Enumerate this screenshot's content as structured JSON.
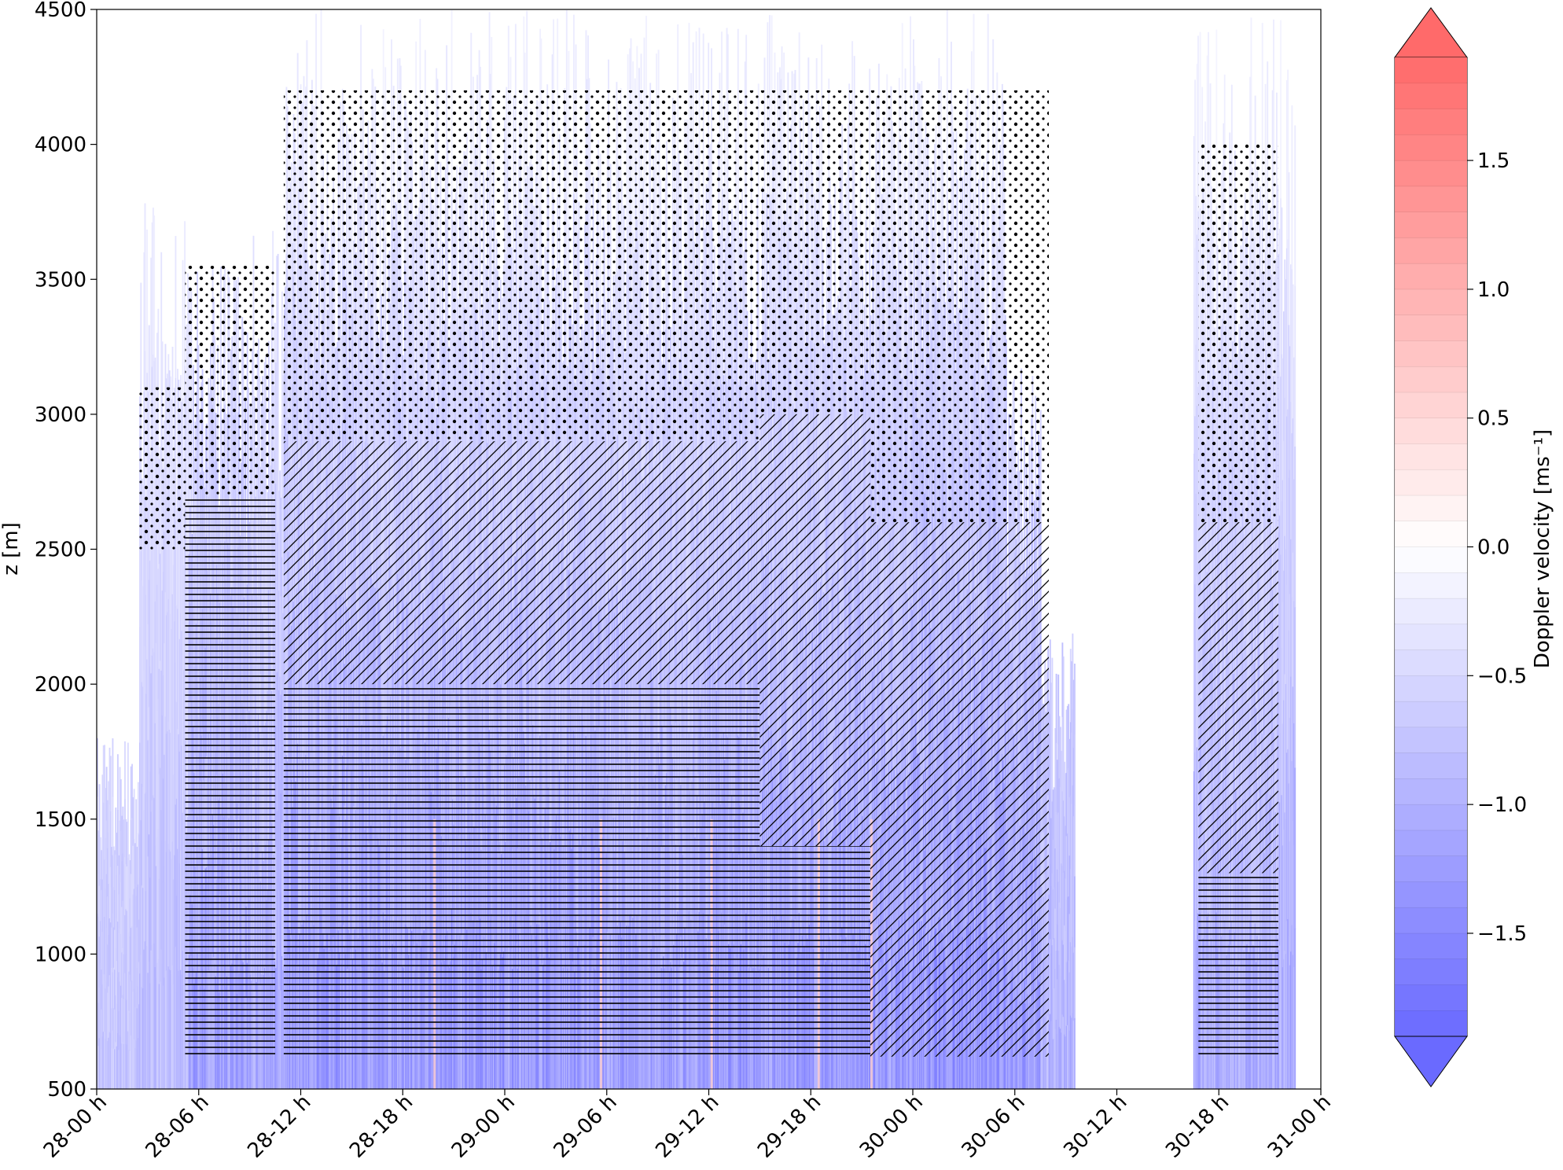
{
  "chart_data": {
    "type": "heatmap",
    "title": "",
    "ylabel": "z [m]",
    "xlabel": "",
    "xlim_hours": [
      0,
      72
    ],
    "ylim": [
      500,
      4500
    ],
    "x_ticks": [
      {
        "hour": 0,
        "label": "28-00 h"
      },
      {
        "hour": 6,
        "label": "28-06 h"
      },
      {
        "hour": 12,
        "label": "28-12 h"
      },
      {
        "hour": 18,
        "label": "28-18 h"
      },
      {
        "hour": 24,
        "label": "29-00 h"
      },
      {
        "hour": 30,
        "label": "29-06 h"
      },
      {
        "hour": 36,
        "label": "29-12 h"
      },
      {
        "hour": 42,
        "label": "29-18 h"
      },
      {
        "hour": 48,
        "label": "30-00 h"
      },
      {
        "hour": 54,
        "label": "30-06 h"
      },
      {
        "hour": 60,
        "label": "30-12 h"
      },
      {
        "hour": 66,
        "label": "30-18 h"
      },
      {
        "hour": 72,
        "label": "31-00 h"
      }
    ],
    "y_ticks": [
      500,
      1000,
      1500,
      2000,
      2500,
      3000,
      3500,
      4000,
      4500
    ],
    "colorbar": {
      "label": "Doppler velocity [ms⁻¹]",
      "min": -1.9,
      "max": 1.9,
      "ticks": [
        {
          "value": 1.5,
          "label": "1.5"
        },
        {
          "value": 1.0,
          "label": "1.0"
        },
        {
          "value": 0.5,
          "label": "0.5"
        },
        {
          "value": 0.0,
          "label": "0.0"
        },
        {
          "value": -0.5,
          "label": "−0.5"
        },
        {
          "value": -1.0,
          "label": "−1.0"
        },
        {
          "value": -1.5,
          "label": "−1.5"
        }
      ],
      "extend": "both",
      "colormap": "bwr",
      "color_low": "#6a6aff",
      "color_mid": "#ffffff",
      "color_high": "#ff6a6a"
    },
    "echo_columns": [
      {
        "start_h": 0.0,
        "end_h": 2.5,
        "top_m": 1800,
        "intensity": 0.45
      },
      {
        "start_h": 2.5,
        "end_h": 5.4,
        "top_m": 3800,
        "intensity": 0.55
      },
      {
        "start_h": 5.4,
        "end_h": 9.0,
        "top_m": 3550,
        "intensity": 0.8
      },
      {
        "start_h": 9.0,
        "end_h": 11.0,
        "top_m": 3700,
        "intensity": 0.7
      },
      {
        "start_h": 11.0,
        "end_h": 24.0,
        "top_m": 4500,
        "intensity": 0.85
      },
      {
        "start_h": 24.0,
        "end_h": 30.0,
        "top_m": 4500,
        "intensity": 0.85
      },
      {
        "start_h": 30.0,
        "end_h": 36.0,
        "top_m": 4500,
        "intensity": 0.8
      },
      {
        "start_h": 36.0,
        "end_h": 42.0,
        "top_m": 4500,
        "intensity": 0.85
      },
      {
        "start_h": 42.0,
        "end_h": 48.0,
        "top_m": 4500,
        "intensity": 0.85
      },
      {
        "start_h": 48.0,
        "end_h": 53.5,
        "top_m": 4500,
        "intensity": 0.9
      },
      {
        "start_h": 53.5,
        "end_h": 55.5,
        "top_m": 3200,
        "intensity": 0.8
      },
      {
        "start_h": 55.5,
        "end_h": 57.5,
        "top_m": 2200,
        "intensity": 0.6
      },
      {
        "start_h": 64.5,
        "end_h": 70.5,
        "top_m": 4500,
        "intensity": 0.7
      }
    ],
    "hatched_regions": [
      {
        "start_h": 2.5,
        "end_h": 5.2,
        "bottom_m": 2500,
        "top_m": 3100,
        "pattern": "dots"
      },
      {
        "start_h": 5.2,
        "end_h": 10.5,
        "bottom_m": 620,
        "top_m": 2700,
        "pattern": "horizontal"
      },
      {
        "start_h": 5.2,
        "end_h": 10.5,
        "bottom_m": 2700,
        "top_m": 3550,
        "pattern": "dots"
      },
      {
        "start_h": 11.0,
        "end_h": 39.0,
        "bottom_m": 620,
        "top_m": 2000,
        "pattern": "horizontal"
      },
      {
        "start_h": 11.0,
        "end_h": 39.0,
        "bottom_m": 2000,
        "top_m": 2900,
        "pattern": "diagonal"
      },
      {
        "start_h": 11.0,
        "end_h": 39.0,
        "bottom_m": 2900,
        "top_m": 4200,
        "pattern": "dots"
      },
      {
        "start_h": 39.0,
        "end_h": 45.5,
        "bottom_m": 620,
        "top_m": 1400,
        "pattern": "horizontal"
      },
      {
        "start_h": 39.0,
        "end_h": 45.5,
        "bottom_m": 1400,
        "top_m": 3000,
        "pattern": "diagonal"
      },
      {
        "start_h": 39.0,
        "end_h": 45.5,
        "bottom_m": 3000,
        "top_m": 4200,
        "pattern": "dots"
      },
      {
        "start_h": 45.5,
        "end_h": 56.0,
        "bottom_m": 620,
        "top_m": 1200,
        "pattern": "diagonal"
      },
      {
        "start_h": 45.5,
        "end_h": 56.0,
        "bottom_m": 1200,
        "top_m": 2600,
        "pattern": "diagonal"
      },
      {
        "start_h": 45.5,
        "end_h": 56.0,
        "bottom_m": 2600,
        "top_m": 4200,
        "pattern": "dots"
      },
      {
        "start_h": 64.8,
        "end_h": 69.5,
        "bottom_m": 620,
        "top_m": 1300,
        "pattern": "horizontal"
      },
      {
        "start_h": 64.8,
        "end_h": 69.5,
        "bottom_m": 1300,
        "top_m": 2600,
        "pattern": "diagonal"
      },
      {
        "start_h": 64.8,
        "end_h": 69.5,
        "bottom_m": 2600,
        "top_m": 4000,
        "pattern": "dots"
      }
    ],
    "grid": false,
    "legend": "none"
  }
}
